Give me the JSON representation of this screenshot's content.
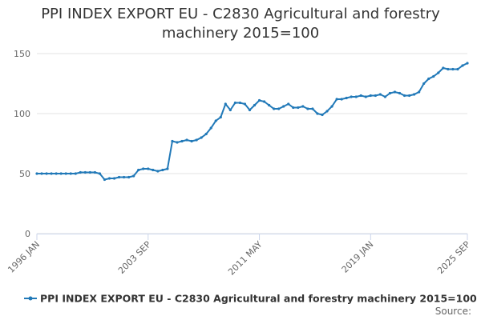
{
  "chart_data": {
    "type": "line",
    "title": "PPI INDEX EXPORT EU - C2830 Agricultural and forestry machinery 2015=100",
    "categories": [
      "1996 JAN",
      null,
      null,
      null,
      null,
      null,
      null,
      null,
      null,
      null,
      null,
      null,
      null,
      null,
      null,
      null,
      null,
      null,
      null,
      null,
      null,
      null,
      null,
      "2003 SEP",
      null,
      null,
      null,
      null,
      null,
      null,
      null,
      null,
      null,
      null,
      null,
      null,
      null,
      null,
      null,
      null,
      null,
      null,
      null,
      null,
      null,
      null,
      "2011 MAY",
      null,
      null,
      null,
      null,
      null,
      null,
      null,
      null,
      null,
      null,
      null,
      null,
      null,
      null,
      null,
      null,
      null,
      null,
      null,
      null,
      null,
      null,
      "2019 JAN",
      null,
      null,
      null,
      null,
      null,
      null,
      null,
      null,
      null,
      null,
      null,
      null,
      null,
      null,
      null,
      null,
      null,
      null,
      null,
      "2025 SEP"
    ],
    "series": [
      {
        "name": "PPI INDEX EXPORT EU - C2830 Agricultural and forestry machinery 2015=100",
        "color": "#2179b8",
        "values": [
          50,
          50,
          50,
          50,
          50,
          50,
          50,
          50,
          50,
          51,
          51,
          51,
          51,
          50,
          45,
          46,
          46,
          47,
          47,
          47,
          48,
          53,
          54,
          54,
          53,
          52,
          53,
          54,
          77,
          76,
          77,
          78,
          77,
          78,
          80,
          83,
          88,
          94,
          97,
          108,
          103,
          109,
          109,
          108,
          103,
          107,
          111,
          110,
          107,
          104,
          104,
          106,
          108,
          105,
          105,
          106,
          104,
          104,
          100,
          99,
          102,
          106,
          112,
          112,
          113,
          114,
          114,
          115,
          114,
          115,
          115,
          116,
          114,
          117,
          118,
          117,
          115,
          115,
          116,
          118,
          125,
          129,
          131,
          134,
          138,
          137,
          137,
          137,
          140,
          142
        ]
      }
    ],
    "ylim": [
      0,
      150
    ],
    "yticks": [
      0,
      50,
      100,
      150
    ],
    "grid": true,
    "legend": "bottom",
    "source": "Source:"
  }
}
